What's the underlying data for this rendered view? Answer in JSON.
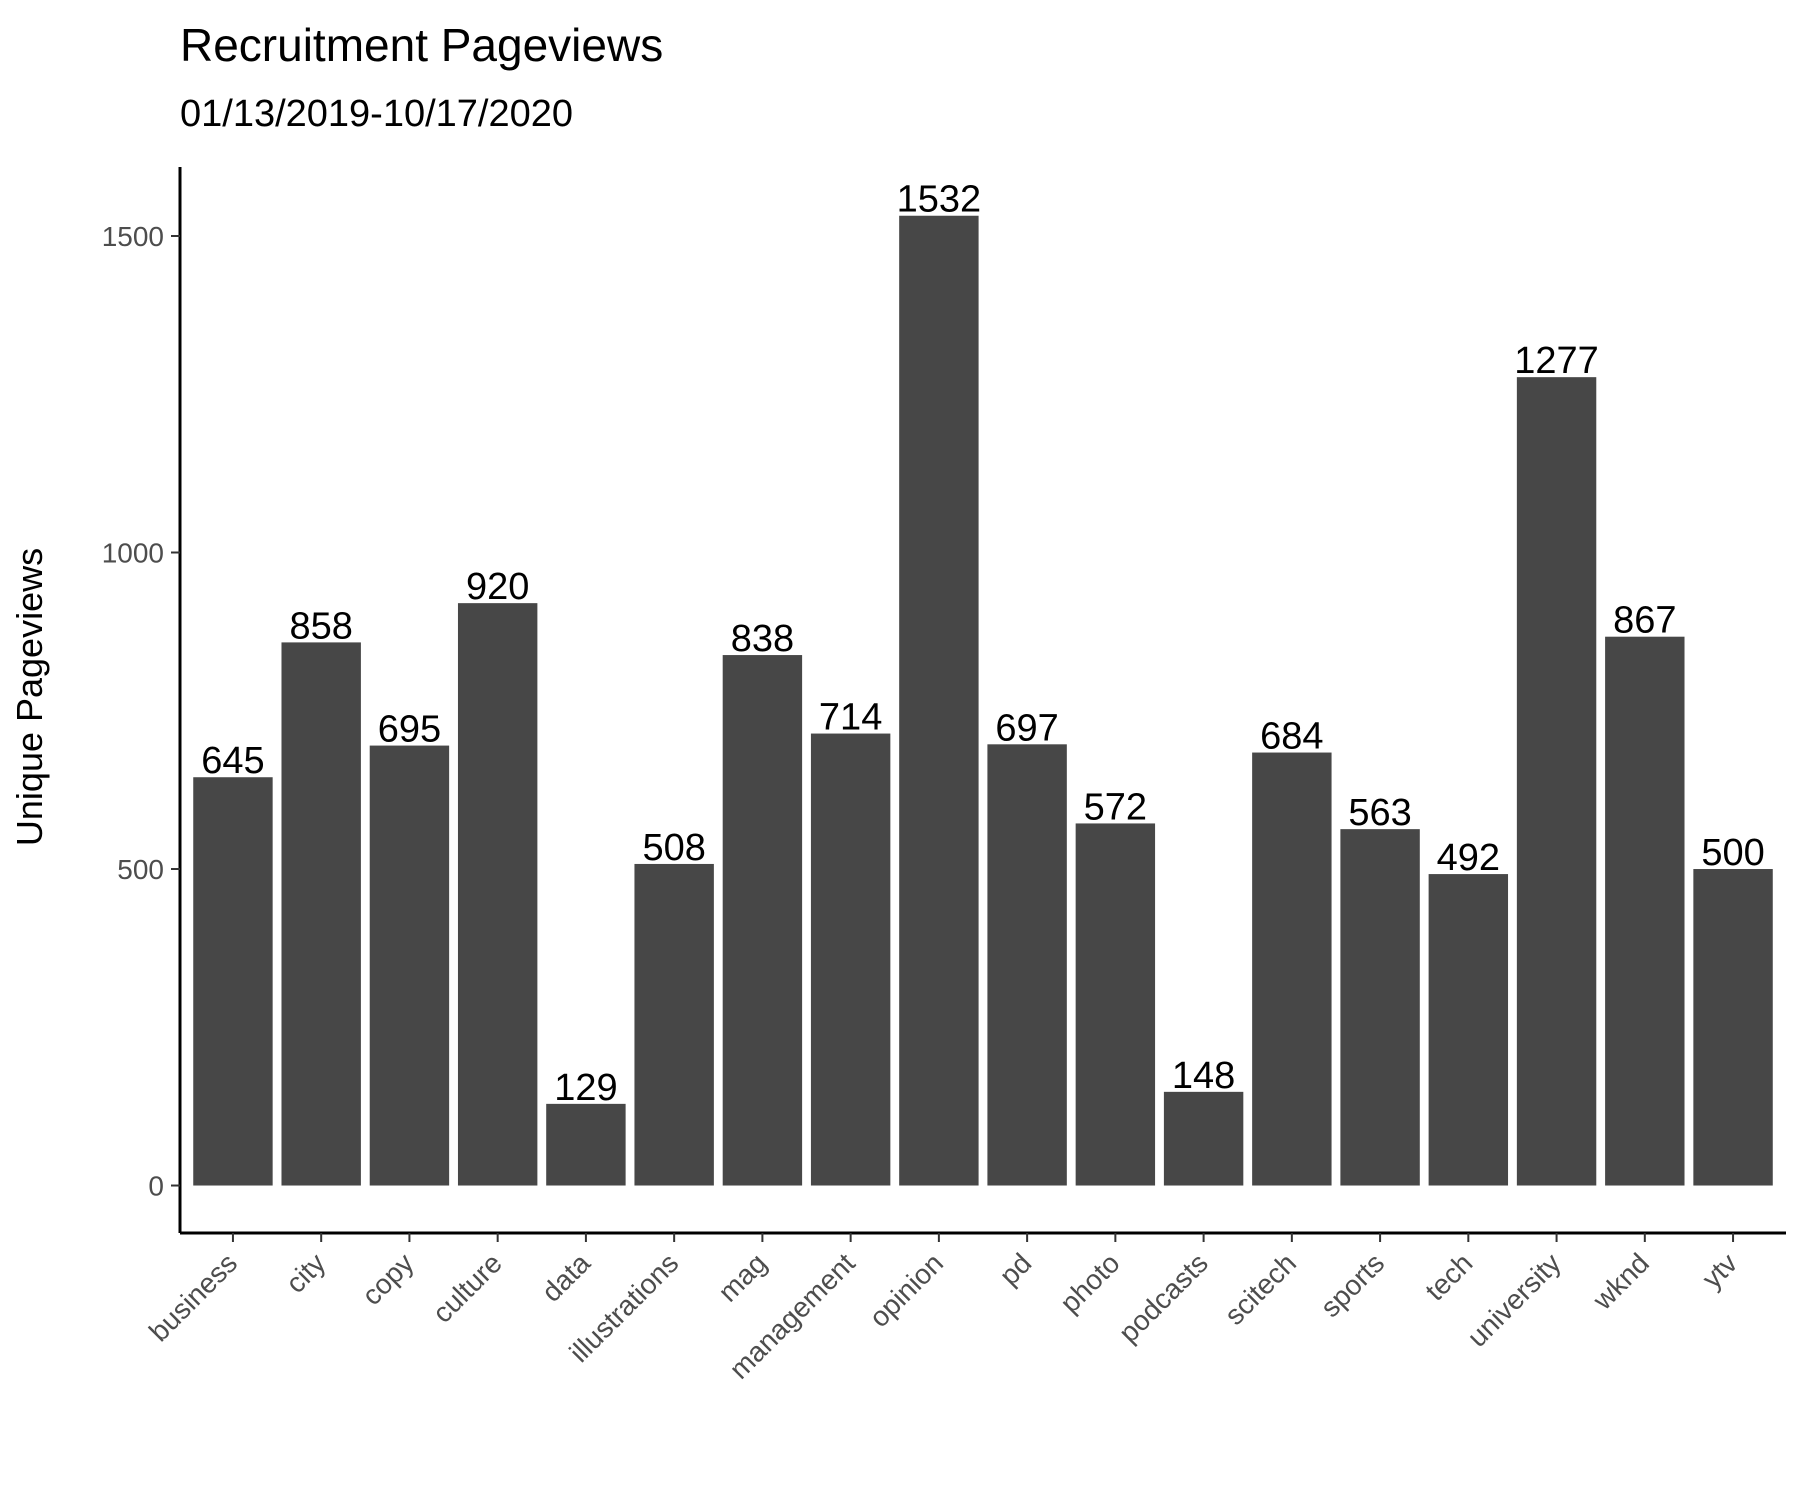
{
  "chart_data": {
    "type": "bar",
    "title": "Recruitment Pageviews",
    "subtitle": "01/13/2019-10/17/2020",
    "xlabel": "",
    "ylabel": "Unique Pageviews",
    "categories": [
      "business",
      "city",
      "copy",
      "culture",
      "data",
      "illustrations",
      "mag",
      "management",
      "opinion",
      "pd",
      "photo",
      "podcasts",
      "scitech",
      "sports",
      "tech",
      "university",
      "wknd",
      "ytv"
    ],
    "values": [
      645,
      858,
      695,
      920,
      129,
      508,
      838,
      714,
      1532,
      697,
      572,
      148,
      684,
      563,
      492,
      1277,
      867,
      500
    ],
    "yticks": [
      0,
      500,
      1000,
      1500
    ],
    "ylim": [
      -75,
      1609
    ],
    "bar_color": "#474747",
    "grid": false,
    "legend": "none"
  }
}
